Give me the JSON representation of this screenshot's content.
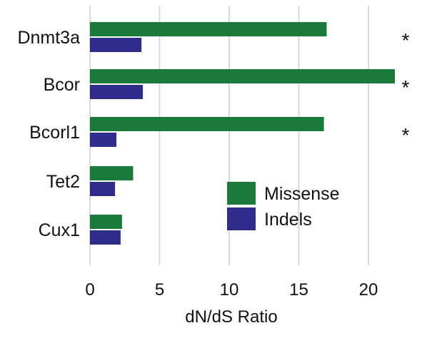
{
  "chart_data": {
    "type": "bar",
    "orientation": "horizontal",
    "categories": [
      "Dnmt3a",
      "Bcor",
      "Bcorl1",
      "Tet2",
      "Cux1"
    ],
    "series": [
      {
        "name": "Missense",
        "color": "#1a7a3c",
        "values": [
          17.0,
          21.9,
          16.8,
          3.1,
          2.3
        ]
      },
      {
        "name": "Indels",
        "color": "#2e2d8c",
        "values": [
          3.7,
          3.8,
          1.9,
          1.8,
          2.2
        ]
      }
    ],
    "significance": [
      "*",
      "*",
      "*",
      "",
      ""
    ],
    "title": "",
    "xlabel": "dN/dS Ratio",
    "ylabel": "",
    "xlim": [
      0,
      22
    ],
    "xticks": [
      0,
      5,
      10,
      15,
      20
    ],
    "grid": "vertical",
    "gridline_color": "#d9d9d9",
    "legend_position": "right-center"
  }
}
